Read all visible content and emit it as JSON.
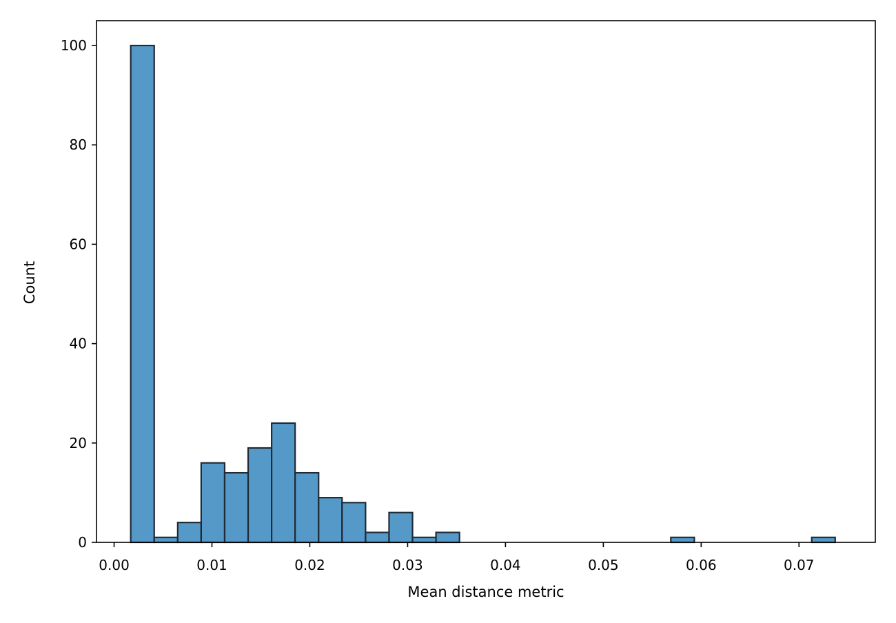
{
  "chart_data": {
    "type": "bar",
    "title": "",
    "xlabel": "Mean distance metric",
    "ylabel": "Count",
    "xlim": [
      -0.0018,
      0.0778
    ],
    "ylim": [
      0,
      105
    ],
    "xticks": [
      0.0,
      0.01,
      0.02,
      0.03,
      0.04,
      0.05,
      0.06,
      0.07
    ],
    "xtick_labels": [
      "0.00",
      "0.01",
      "0.02",
      "0.03",
      "0.04",
      "0.05",
      "0.06",
      "0.07"
    ],
    "yticks": [
      0,
      20,
      40,
      60,
      80,
      100
    ],
    "ytick_labels": [
      "0",
      "20",
      "40",
      "60",
      "80",
      "100"
    ],
    "grid": false,
    "bar_color": "#5599c8",
    "edge_color": "#1f2b36",
    "bins": [
      {
        "x0": 0.0017,
        "x1": 0.0041,
        "count": 100
      },
      {
        "x0": 0.0041,
        "x1": 0.0065,
        "count": 1
      },
      {
        "x0": 0.0065,
        "x1": 0.0089,
        "count": 4
      },
      {
        "x0": 0.0089,
        "x1": 0.0113,
        "count": 16
      },
      {
        "x0": 0.0113,
        "x1": 0.0137,
        "count": 14
      },
      {
        "x0": 0.0137,
        "x1": 0.0161,
        "count": 19
      },
      {
        "x0": 0.0161,
        "x1": 0.0185,
        "count": 24
      },
      {
        "x0": 0.0185,
        "x1": 0.0209,
        "count": 14
      },
      {
        "x0": 0.0209,
        "x1": 0.0233,
        "count": 9
      },
      {
        "x0": 0.0233,
        "x1": 0.0257,
        "count": 8
      },
      {
        "x0": 0.0257,
        "x1": 0.0281,
        "count": 2
      },
      {
        "x0": 0.0281,
        "x1": 0.0305,
        "count": 6
      },
      {
        "x0": 0.0305,
        "x1": 0.0329,
        "count": 1
      },
      {
        "x0": 0.0329,
        "x1": 0.0353,
        "count": 2
      },
      {
        "x0": 0.0353,
        "x1": 0.0377,
        "count": 0
      },
      {
        "x0": 0.0377,
        "x1": 0.0401,
        "count": 0
      },
      {
        "x0": 0.0401,
        "x1": 0.0425,
        "count": 0
      },
      {
        "x0": 0.0425,
        "x1": 0.0449,
        "count": 0
      },
      {
        "x0": 0.0449,
        "x1": 0.0473,
        "count": 0
      },
      {
        "x0": 0.0473,
        "x1": 0.0497,
        "count": 0
      },
      {
        "x0": 0.0497,
        "x1": 0.0521,
        "count": 0
      },
      {
        "x0": 0.0521,
        "x1": 0.0545,
        "count": 0
      },
      {
        "x0": 0.0545,
        "x1": 0.0569,
        "count": 0
      },
      {
        "x0": 0.0569,
        "x1": 0.0593,
        "count": 1
      },
      {
        "x0": 0.0593,
        "x1": 0.0617,
        "count": 0
      },
      {
        "x0": 0.0617,
        "x1": 0.0641,
        "count": 0
      },
      {
        "x0": 0.0641,
        "x1": 0.0665,
        "count": 0
      },
      {
        "x0": 0.0665,
        "x1": 0.0689,
        "count": 0
      },
      {
        "x0": 0.0689,
        "x1": 0.0713,
        "count": 0
      },
      {
        "x0": 0.0713,
        "x1": 0.0737,
        "count": 1
      }
    ]
  }
}
